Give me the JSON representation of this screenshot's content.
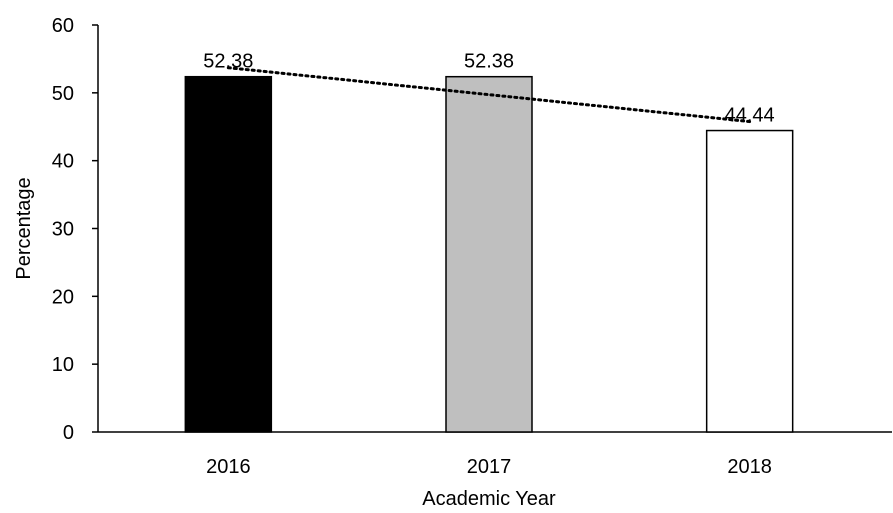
{
  "chart_data": {
    "type": "bar",
    "title": "",
    "xlabel": "Academic Year",
    "ylabel": "Percentage",
    "categories": [
      "2016",
      "2017",
      "2018"
    ],
    "values": [
      52.38,
      52.38,
      44.44
    ],
    "data_labels": [
      "52.38",
      "52.38",
      "44.44"
    ],
    "bar_fills": [
      "#000000",
      "#bfbfbf",
      "#ffffff"
    ],
    "bar_stroke": "#000000",
    "ylim": [
      0,
      60
    ],
    "yticks": [
      0,
      10,
      20,
      30,
      40,
      50,
      60
    ],
    "ytick_labels": [
      "0",
      "10",
      "20",
      "30",
      "40",
      "50",
      "60"
    ],
    "grid": false,
    "legend": "none",
    "trendline": {
      "type": "linear",
      "style": "dotted",
      "color": "#000000"
    }
  }
}
